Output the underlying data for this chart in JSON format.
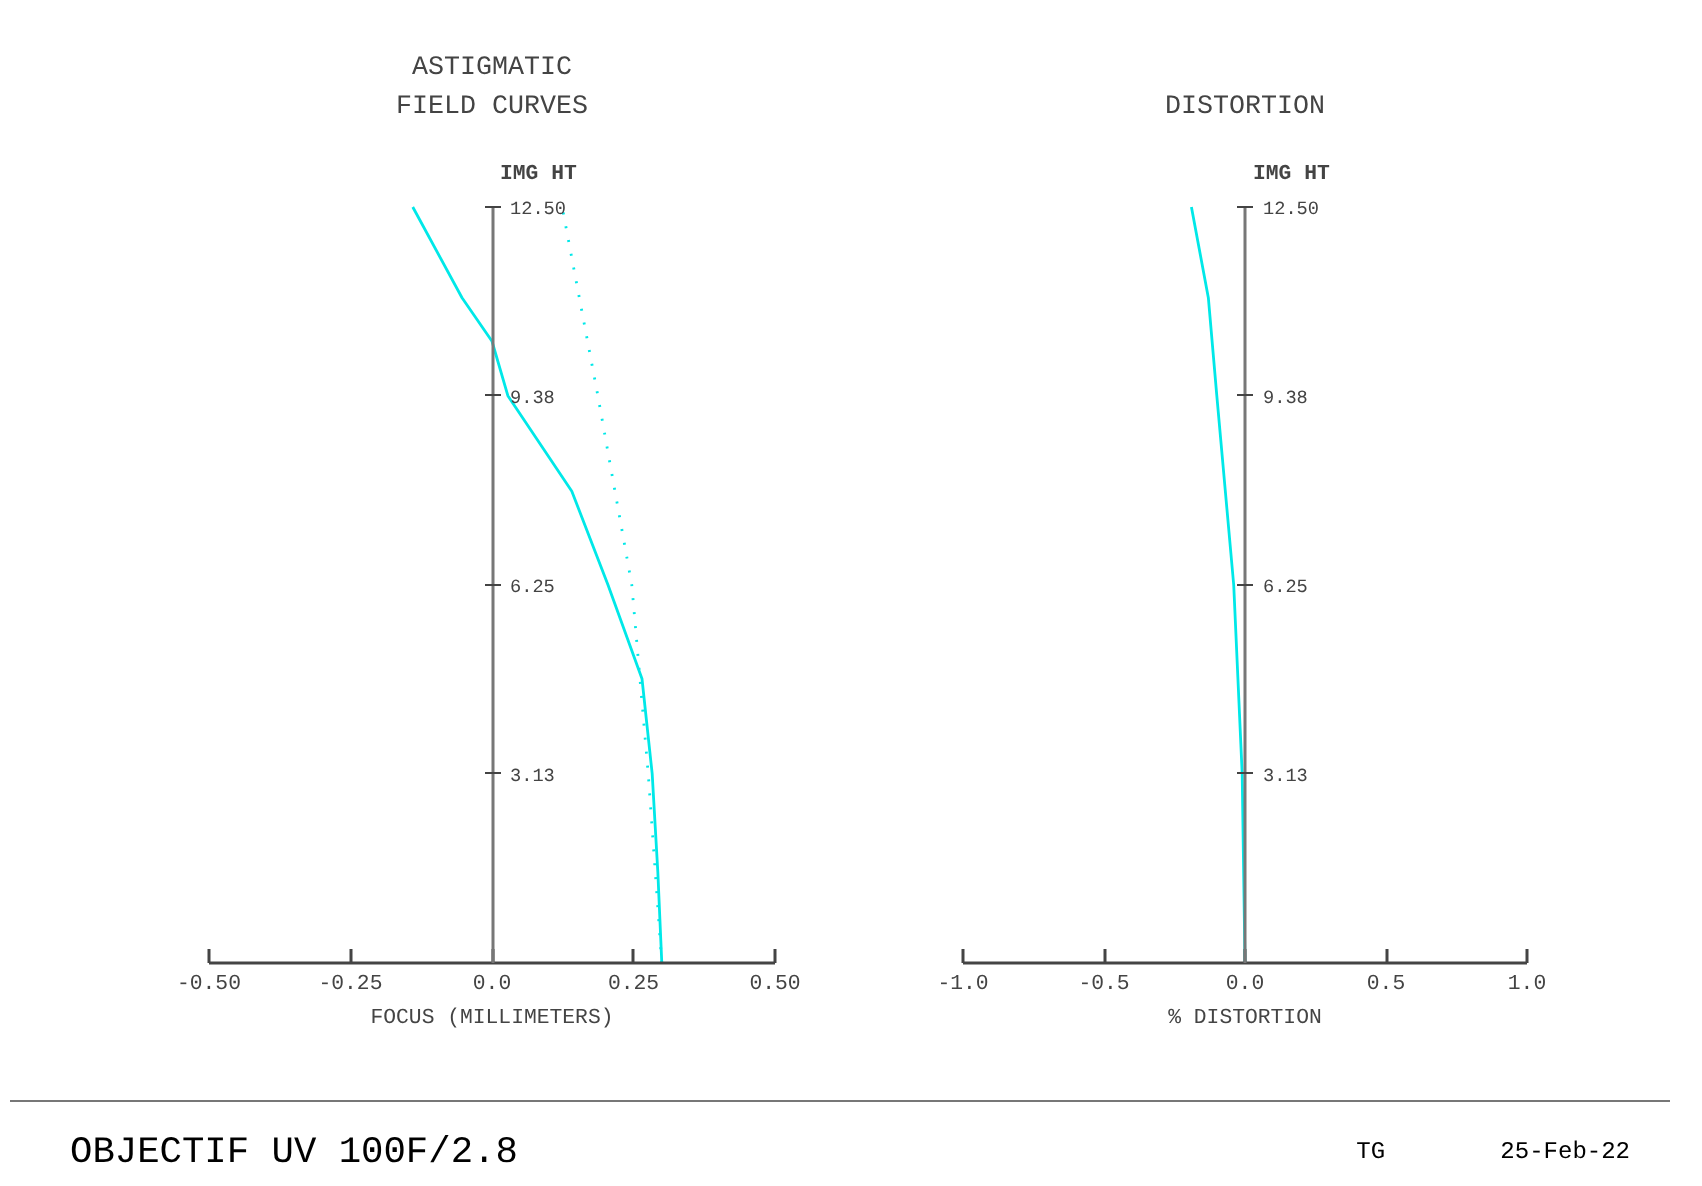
{
  "chart_data": [
    {
      "type": "line",
      "title": "ASTIGMATIC\nFIELD CURVES",
      "xlabel": "FOCUS (MILLIMETERS)",
      "ylabel": "IMG HT",
      "xlim": [
        -0.5,
        0.5
      ],
      "xticks": [
        {
          "value": -0.5,
          "label": "-0.50"
        },
        -0.25,
        {
          "value": 0,
          "label": "0.0"
        },
        0.25,
        {
          "value": 0.5,
          "label": "0.50"
        }
      ],
      "ylim": [
        0,
        12.5
      ],
      "yticks": [
        3.13,
        6.25,
        9.38,
        {
          "value": 12.5,
          "label": "12.50"
        }
      ],
      "series": [
        {
          "color": "#00e8e8",
          "line_style": "solid",
          "x": [
            0.3,
            0.293,
            0.283,
            0.265,
            0.205,
            0.141,
            0.028,
            0.0,
            -0.053,
            -0.14
          ],
          "values": [
            0,
            1.5,
            3.13,
            4.7,
            6.25,
            7.8,
            9.38,
            10.28,
            11.0,
            12.5
          ]
        },
        {
          "color": "#00e8e8",
          "line_style": "dotted",
          "x": [
            0.3,
            0.276,
            0.247,
            0.187,
            0.124
          ],
          "values": [
            0,
            3.13,
            6.25,
            9.38,
            12.5
          ]
        }
      ],
      "annotations": [
        "OBJECTIF UV 100F/2.8",
        "TG",
        "25-Feb-22"
      ]
    },
    {
      "type": "line",
      "title": "DISTORTION",
      "xlabel": "% DISTORTION",
      "ylabel": "IMG HT",
      "xlim": [
        -1.0,
        1.0
      ],
      "xticks": [
        {
          "value": -1,
          "label": "-1.0"
        },
        -0.5,
        {
          "value": 0,
          "label": "0.0"
        },
        0.5,
        {
          "value": 1,
          "label": "1.0"
        }
      ],
      "ylim": [
        0,
        12.5
      ],
      "yticks": [
        3.13,
        6.25,
        9.38,
        {
          "value": 12.5,
          "label": "12.50"
        }
      ],
      "series": [
        {
          "color": "#00e8e8",
          "line_style": "solid",
          "x": [
            0,
            -0.01,
            -0.04,
            -0.1,
            -0.13,
            -0.19
          ],
          "values": [
            0,
            3.13,
            6.25,
            9.38,
            11.0,
            12.5
          ]
        }
      ]
    }
  ]
}
